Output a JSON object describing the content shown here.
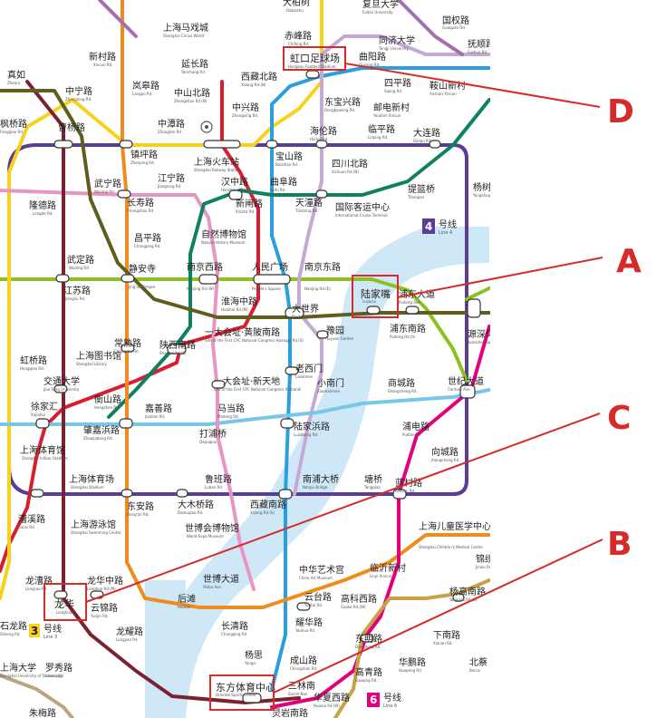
{
  "colors": {
    "line1": "#d6202f",
    "line2": "#8cc220",
    "line3": "#f8d21a",
    "line4": "#5b3d95",
    "line5": "#a56eb1",
    "line6": "#e4007c",
    "line7": "#f08c1e",
    "line8": "#2b9ee0",
    "line9": "#79c6e8",
    "line10": "#c5a8d3",
    "line11": "#7b2230",
    "line12": "#0f8061",
    "line13": "#e796c4",
    "line14": "#5f5e1e",
    "line15": "#bca57c",
    "line18": "#c8a24a",
    "river": "#cfe8f7",
    "annotation": "#d62b2b"
  },
  "line_badges": {
    "line3": {
      "num": "3",
      "cn": "号线",
      "en": "Line 3"
    },
    "line4": {
      "num": "4",
      "cn": "号线",
      "en": "Line 4"
    },
    "line6": {
      "num": "6",
      "cn": "号线",
      "en": "Line 6"
    }
  },
  "annotations": [
    {
      "letter": "A",
      "target": "陆家嘴"
    },
    {
      "letter": "B",
      "target": "东方体育中心"
    },
    {
      "letter": "C",
      "target": "龙华"
    },
    {
      "letter": "D",
      "target": "虹口足球场"
    }
  ],
  "stations": [
    {
      "cn": "大柏树",
      "en": "Dabaishu"
    },
    {
      "cn": "复旦大学",
      "en": "Fudan University"
    },
    {
      "cn": "国权路",
      "en": "Guoquan Rd."
    },
    {
      "cn": "上海马戏城",
      "en": "Shanghai Circus World"
    },
    {
      "cn": "赤峰路",
      "en": "Chifeng Rd."
    },
    {
      "cn": "同济大学",
      "en": "Tongji University"
    },
    {
      "cn": "抚顺路",
      "en": "Fushun Rd."
    },
    {
      "cn": "新村路",
      "en": "Xincun Rd."
    },
    {
      "cn": "延长路",
      "en": "Yanchang Rd."
    },
    {
      "cn": "虹口足球场",
      "en": "Hongkou Football Stadium"
    },
    {
      "cn": "曲阳路",
      "en": "Quyang Rd."
    },
    {
      "cn": "岚皋路",
      "en": "Langao Rd."
    },
    {
      "cn": "西藏北路",
      "en": "Xizang Rd.(N)"
    },
    {
      "cn": "四平路",
      "en": "Siping Rd."
    },
    {
      "cn": "鞍山新村",
      "en": "Anshan Xincun"
    },
    {
      "cn": "真如",
      "en": "Zhenru"
    },
    {
      "cn": "中宁路",
      "en": "Zhongning Rd."
    },
    {
      "cn": "中山北路",
      "en": "Zhongshan Rd.(N)"
    },
    {
      "cn": "东宝兴路",
      "en": "Dongbaoxing Rd."
    },
    {
      "cn": "中兴路",
      "en": "Zhongxing Rd."
    },
    {
      "cn": "邮电新村",
      "en": "Youdian Xincun"
    },
    {
      "cn": "枫桥路",
      "en": "Fengqiao Rd."
    },
    {
      "cn": "曹杨路",
      "en": "Caoyang Rd."
    },
    {
      "cn": "中潭路",
      "en": "Zhongtan Rd."
    },
    {
      "cn": "海伦路",
      "en": "Hailun Rd."
    },
    {
      "cn": "临平路",
      "en": "Linping Rd."
    },
    {
      "cn": "大连路",
      "en": "Dalian Rd."
    },
    {
      "cn": "镇坪路",
      "en": "Zhenping Rd."
    },
    {
      "cn": "上海火车站",
      "en": "Shanghai Railway Station"
    },
    {
      "cn": "宝山路",
      "en": "Baoshan Rd."
    },
    {
      "cn": "四川北路",
      "en": "Sichuan Rd.(N)"
    },
    {
      "cn": "江宁路",
      "en": "Jiangning Rd."
    },
    {
      "cn": "武宁路",
      "en": "Wuning Rd."
    },
    {
      "cn": "汉中路",
      "en": "Hanzhong Rd."
    },
    {
      "cn": "曲阜路",
      "en": "Qufu Rd."
    },
    {
      "cn": "提篮桥",
      "en": "Tilanqiao"
    },
    {
      "cn": "杨树浦路",
      "en": "Yangshupu Rd."
    },
    {
      "cn": "隆德路",
      "en": "Longde Rd."
    },
    {
      "cn": "长寿路",
      "en": "Changshou Rd."
    },
    {
      "cn": "新闸路",
      "en": "Xinzha Rd."
    },
    {
      "cn": "天潼路",
      "en": "Tiantong Rd."
    },
    {
      "cn": "国际客运中心",
      "en": "International Cruise Terminal"
    },
    {
      "cn": "自然博物馆",
      "en": "Natural History Museum"
    },
    {
      "cn": "昌平路",
      "en": "Changping Rd."
    },
    {
      "cn": "武定路",
      "en": "Wuding Rd."
    },
    {
      "cn": "静安寺",
      "en": "Jing'an Temple"
    },
    {
      "cn": "南京西路",
      "en": "Nanjing Rd.(W)"
    },
    {
      "cn": "人民广场",
      "en": "People's Square"
    },
    {
      "cn": "南京东路",
      "en": "Nanjing Rd.(E)"
    },
    {
      "cn": "陆家嘴",
      "en": "Lujiazui"
    },
    {
      "cn": "浦东南路",
      "en": "Pudong Rd.(S)"
    },
    {
      "cn": "浦东大道",
      "en": "Pudong Ave."
    },
    {
      "cn": "江苏路",
      "en": "Jiangsu Rd."
    },
    {
      "cn": "淮海中路",
      "en": "Huaihai Rd.(M)"
    },
    {
      "cn": "大世界",
      "en": "Dashijie"
    },
    {
      "cn": "豫园",
      "en": "Yuyuan Garden"
    },
    {
      "cn": "一大会址·黄陂南路",
      "en": "Site of the First CPC National Congress Huangpi Rd.(S)"
    },
    {
      "cn": "源深体育中心",
      "en": "Yuanshen Sports Center"
    },
    {
      "cn": "常熟路",
      "en": "Changshu Rd."
    },
    {
      "cn": "陕西南路",
      "en": "Shaanxi Rd.(S)"
    },
    {
      "cn": "上海图书馆",
      "en": "Shanghai Library"
    },
    {
      "cn": "虹桥路",
      "en": "Hongqiao Rd."
    },
    {
      "cn": "交通大学",
      "en": "Jiao Tong University"
    },
    {
      "cn": "一大会址·新天地",
      "en": "Site of the First CPC National Congress Xintiandi"
    },
    {
      "cn": "老西门",
      "en": "Laoximen"
    },
    {
      "cn": "小南门",
      "en": "Xiaonanmen"
    },
    {
      "cn": "商城路",
      "en": "Shangcheng Rd."
    },
    {
      "cn": "世纪大道",
      "en": "Century Ave."
    },
    {
      "cn": "衡山路",
      "en": "Hengshan Rd."
    },
    {
      "cn": "徐家汇",
      "en": "Xujiahui"
    },
    {
      "cn": "肇嘉浜路",
      "en": "Zhaojiabang Rd."
    },
    {
      "cn": "嘉善路",
      "en": "Jiashan Rd."
    },
    {
      "cn": "马当路",
      "en": "Madang Rd."
    },
    {
      "cn": "陆家浜路",
      "en": "Lujiabang Rd."
    },
    {
      "cn": "浦电路",
      "en": "Pudian Rd."
    },
    {
      "cn": "打浦桥",
      "en": "Dapuqiao"
    },
    {
      "cn": "向城路",
      "en": "Xiangcheng Rd."
    },
    {
      "cn": "上海体育馆",
      "en": "Shanghai Indoor Stadium"
    },
    {
      "cn": "上海体育场",
      "en": "Shanghai Stadium"
    },
    {
      "cn": "鲁班路",
      "en": "Luban Rd."
    },
    {
      "cn": "南浦大桥",
      "en": "Nanpu Bridge"
    },
    {
      "cn": "塘桥",
      "en": "Tangqiao"
    },
    {
      "cn": "蓝村路",
      "en": "Lancun Rd."
    },
    {
      "cn": "东安路",
      "en": "Dong'an Rd."
    },
    {
      "cn": "大木桥路",
      "en": "Damuqiao Rd."
    },
    {
      "cn": "西藏南路",
      "en": "Xizang Rd.(S)"
    },
    {
      "cn": "漕溪路",
      "en": "Caoxi Rd."
    },
    {
      "cn": "上海游泳馆",
      "en": "Shanghai Swimming Center"
    },
    {
      "cn": "世博会博物馆",
      "en": "World Expo Museum"
    },
    {
      "cn": "上海儿童医学中心",
      "en": "Shanghai Children's Medical Center"
    },
    {
      "cn": "中华艺术宫",
      "en": "China Art Museum"
    },
    {
      "cn": "临沂新村",
      "en": "Linyi Xincun"
    },
    {
      "cn": "锦绣路",
      "en": "Jinxiu Rd."
    },
    {
      "cn": "龙漕路",
      "en": "Longcao Rd."
    },
    {
      "cn": "龙华中路",
      "en": "Longhua Rd.(M)"
    },
    {
      "cn": "世博大道",
      "en": "Shibo Ave."
    },
    {
      "cn": "杨高南路",
      "en": "Yanggao Rd.(S)"
    },
    {
      "cn": "龙华",
      "en": "Longhua"
    },
    {
      "cn": "云锦路",
      "en": "Yunjin Rd."
    },
    {
      "cn": "后滩",
      "en": "Houtan"
    },
    {
      "cn": "云台路",
      "en": "Yuntai Rd."
    },
    {
      "cn": "高科西路",
      "en": "Gaoke Rd.(W)"
    },
    {
      "cn": "石龙路",
      "en": "Shilong Rd."
    },
    {
      "cn": "长清路",
      "en": "Changqing Rd."
    },
    {
      "cn": "耀华路",
      "en": "Yaohua Rd."
    },
    {
      "cn": "龙耀路",
      "en": "Longyao Rd."
    },
    {
      "cn": "下南路",
      "en": "Xianan Rd."
    },
    {
      "cn": "东明路",
      "en": "Dongming Rd."
    },
    {
      "cn": "杨思",
      "en": "Yangsi"
    },
    {
      "cn": "成山路",
      "en": "Chengshan Rd."
    },
    {
      "cn": "华鹏路",
      "en": "Huapeng Rd."
    },
    {
      "cn": "北蔡",
      "en": "Beicai"
    },
    {
      "cn": "上海大学",
      "en": "Shanghai University of Technology"
    },
    {
      "cn": "罗秀路",
      "en": "Luoxiu Rd."
    },
    {
      "cn": "东方体育中心",
      "en": "Oriental Sports Center"
    },
    {
      "cn": "三林南",
      "en": "Sanlin Nan"
    },
    {
      "cn": "高青路",
      "en": "Gaoqing Rd."
    },
    {
      "cn": "华夏西路",
      "en": "Huaxia Rd.(W)"
    },
    {
      "cn": "朱梅路",
      "en": "Zhumei Rd."
    },
    {
      "cn": "灵岩南路",
      "en": "Lingyan Rd.(S)"
    }
  ]
}
